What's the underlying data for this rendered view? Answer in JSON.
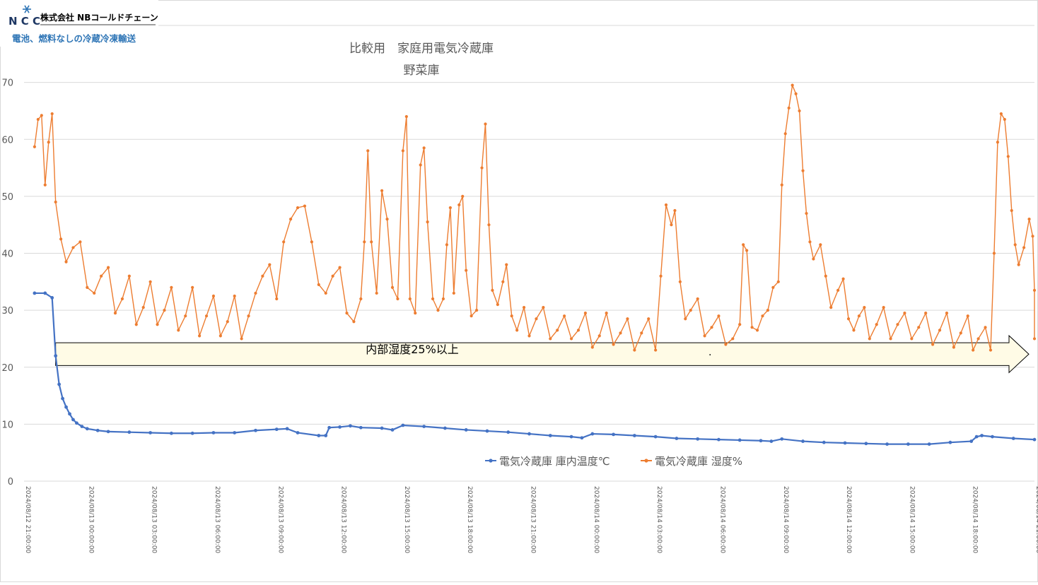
{
  "logo": {
    "brand_mark": "N C C",
    "company": "株式会社 NBコールドチェーン",
    "tagline": "電池、燃料なしの冷蔵冷凍輸送",
    "accent": "#2e75b6"
  },
  "annotation": {
    "arrow_label": "内部湿度25%以上",
    "stray_mark": ".",
    "fill": "#fffbe6",
    "stroke": "#000000"
  },
  "chart_data": {
    "type": "line",
    "title": "比較用　家庭用電気冷蔵庫",
    "subtitle": "野菜庫",
    "xlabel": "",
    "ylabel": "",
    "ylim": [
      0,
      80
    ],
    "yticks": [
      0,
      10,
      20,
      30,
      40,
      50,
      60,
      70,
      80
    ],
    "xlim": [
      "2024/08/12 21:00:00",
      "2024/08/14 21:00:00"
    ],
    "xticks": [
      "2024/08/12 21:00:00",
      "2024/08/13 00:00:00",
      "2024/08/13 03:00:00",
      "2024/08/13 06:00:00",
      "2024/08/13 09:00:00",
      "2024/08/13 12:00:00",
      "2024/08/13 15:00:00",
      "2024/08/13 18:00:00",
      "2024/08/13 21:00:00",
      "2024/08/14 00:00:00",
      "2024/08/14 03:00:00",
      "2024/08/14 06:00:00",
      "2024/08/14 09:00:00",
      "2024/08/14 12:00:00",
      "2024/08/14 15:00:00",
      "2024/08/14 18:00:00",
      "2024/08/14 21:00:00"
    ],
    "grid": "horizontal",
    "legend": "bottom-right",
    "series": [
      {
        "name": "電気冷蔵庫 庫内温度℃",
        "color": "#4472c4",
        "points": [
          [
            "2024/08/12 21:30",
            33.0
          ],
          [
            "2024/08/12 22:00",
            33.0
          ],
          [
            "2024/08/12 22:20",
            32.2
          ],
          [
            "2024/08/12 22:30",
            22.0
          ],
          [
            "2024/08/12 22:40",
            17.0
          ],
          [
            "2024/08/12 22:50",
            14.5
          ],
          [
            "2024/08/12 23:00",
            13.0
          ],
          [
            "2024/08/12 23:10",
            11.8
          ],
          [
            "2024/08/12 23:20",
            10.8
          ],
          [
            "2024/08/12 23:30",
            10.2
          ],
          [
            "2024/08/12 23:45",
            9.6
          ],
          [
            "2024/08/13 00:00",
            9.2
          ],
          [
            "2024/08/13 00:30",
            8.9
          ],
          [
            "2024/08/13 01:00",
            8.7
          ],
          [
            "2024/08/13 02:00",
            8.6
          ],
          [
            "2024/08/13 03:00",
            8.5
          ],
          [
            "2024/08/13 04:00",
            8.4
          ],
          [
            "2024/08/13 05:00",
            8.4
          ],
          [
            "2024/08/13 06:00",
            8.5
          ],
          [
            "2024/08/13 07:00",
            8.5
          ],
          [
            "2024/08/13 08:00",
            8.9
          ],
          [
            "2024/08/13 09:00",
            9.1
          ],
          [
            "2024/08/13 09:30",
            9.2
          ],
          [
            "2024/08/13 10:00",
            8.5
          ],
          [
            "2024/08/13 11:00",
            8.0
          ],
          [
            "2024/08/13 11:20",
            8.0
          ],
          [
            "2024/08/13 11:30",
            9.4
          ],
          [
            "2024/08/13 12:00",
            9.5
          ],
          [
            "2024/08/13 12:30",
            9.7
          ],
          [
            "2024/08/13 13:00",
            9.4
          ],
          [
            "2024/08/13 14:00",
            9.3
          ],
          [
            "2024/08/13 14:30",
            9.0
          ],
          [
            "2024/08/13 15:00",
            9.8
          ],
          [
            "2024/08/13 16:00",
            9.6
          ],
          [
            "2024/08/13 17:00",
            9.3
          ],
          [
            "2024/08/13 18:00",
            9.0
          ],
          [
            "2024/08/13 19:00",
            8.8
          ],
          [
            "2024/08/13 20:00",
            8.6
          ],
          [
            "2024/08/13 21:00",
            8.3
          ],
          [
            "2024/08/13 22:00",
            8.0
          ],
          [
            "2024/08/13 23:00",
            7.8
          ],
          [
            "2024/08/13 23:30",
            7.6
          ],
          [
            "2024/08/14 00:00",
            8.3
          ],
          [
            "2024/08/14 01:00",
            8.2
          ],
          [
            "2024/08/14 02:00",
            8.0
          ],
          [
            "2024/08/14 03:00",
            7.8
          ],
          [
            "2024/08/14 04:00",
            7.5
          ],
          [
            "2024/08/14 05:00",
            7.4
          ],
          [
            "2024/08/14 06:00",
            7.3
          ],
          [
            "2024/08/14 07:00",
            7.2
          ],
          [
            "2024/08/14 08:00",
            7.1
          ],
          [
            "2024/08/14 08:30",
            7.0
          ],
          [
            "2024/08/14 09:00",
            7.4
          ],
          [
            "2024/08/14 10:00",
            7.0
          ],
          [
            "2024/08/14 11:00",
            6.8
          ],
          [
            "2024/08/14 12:00",
            6.7
          ],
          [
            "2024/08/14 13:00",
            6.6
          ],
          [
            "2024/08/14 14:00",
            6.5
          ],
          [
            "2024/08/14 15:00",
            6.5
          ],
          [
            "2024/08/14 16:00",
            6.5
          ],
          [
            "2024/08/14 17:00",
            6.8
          ],
          [
            "2024/08/14 18:00",
            7.0
          ],
          [
            "2024/08/14 18:15",
            7.8
          ],
          [
            "2024/08/14 18:30",
            8.0
          ],
          [
            "2024/08/14 19:00",
            7.8
          ],
          [
            "2024/08/14 20:00",
            7.5
          ],
          [
            "2024/08/14 21:00",
            7.3
          ]
        ]
      },
      {
        "name": "電気冷蔵庫 湿度%",
        "color": "#ed7d31",
        "points": [
          [
            "2024/08/12 21:30",
            58.7
          ],
          [
            "2024/08/12 21:40",
            63.5
          ],
          [
            "2024/08/12 21:50",
            64.2
          ],
          [
            "2024/08/12 22:00",
            52.0
          ],
          [
            "2024/08/12 22:10",
            59.5
          ],
          [
            "2024/08/12 22:20",
            64.5
          ],
          [
            "2024/08/12 22:30",
            49.0
          ],
          [
            "2024/08/12 22:45",
            42.5
          ],
          [
            "2024/08/12 23:00",
            38.5
          ],
          [
            "2024/08/12 23:20",
            41.0
          ],
          [
            "2024/08/12 23:40",
            42.0
          ],
          [
            "2024/08/13 00:00",
            34.0
          ],
          [
            "2024/08/13 00:20",
            33.0
          ],
          [
            "2024/08/13 00:40",
            36.0
          ],
          [
            "2024/08/13 01:00",
            37.5
          ],
          [
            "2024/08/13 01:20",
            29.5
          ],
          [
            "2024/08/13 01:40",
            32.0
          ],
          [
            "2024/08/13 02:00",
            36.0
          ],
          [
            "2024/08/13 02:20",
            27.5
          ],
          [
            "2024/08/13 02:40",
            30.5
          ],
          [
            "2024/08/13 03:00",
            35.0
          ],
          [
            "2024/08/13 03:20",
            27.5
          ],
          [
            "2024/08/13 03:40",
            30.0
          ],
          [
            "2024/08/13 04:00",
            34.0
          ],
          [
            "2024/08/13 04:20",
            26.5
          ],
          [
            "2024/08/13 04:40",
            29.0
          ],
          [
            "2024/08/13 05:00",
            34.0
          ],
          [
            "2024/08/13 05:20",
            25.5
          ],
          [
            "2024/08/13 05:40",
            29.0
          ],
          [
            "2024/08/13 06:00",
            32.5
          ],
          [
            "2024/08/13 06:20",
            25.5
          ],
          [
            "2024/08/13 06:40",
            28.0
          ],
          [
            "2024/08/13 07:00",
            32.5
          ],
          [
            "2024/08/13 07:20",
            25.0
          ],
          [
            "2024/08/13 07:40",
            29.0
          ],
          [
            "2024/08/13 08:00",
            33.0
          ],
          [
            "2024/08/13 08:20",
            36.0
          ],
          [
            "2024/08/13 08:40",
            38.0
          ],
          [
            "2024/08/13 09:00",
            32.0
          ],
          [
            "2024/08/13 09:20",
            42.0
          ],
          [
            "2024/08/13 09:40",
            46.0
          ],
          [
            "2024/08/13 10:00",
            48.0
          ],
          [
            "2024/08/13 10:20",
            48.3
          ],
          [
            "2024/08/13 10:40",
            42.0
          ],
          [
            "2024/08/13 11:00",
            34.5
          ],
          [
            "2024/08/13 11:20",
            33.0
          ],
          [
            "2024/08/13 11:40",
            36.0
          ],
          [
            "2024/08/13 12:00",
            37.5
          ],
          [
            "2024/08/13 12:20",
            29.5
          ],
          [
            "2024/08/13 12:40",
            28.0
          ],
          [
            "2024/08/13 13:00",
            32.0
          ],
          [
            "2024/08/13 13:10",
            42.0
          ],
          [
            "2024/08/13 13:20",
            58.0
          ],
          [
            "2024/08/13 13:30",
            42.0
          ],
          [
            "2024/08/13 13:45",
            33.0
          ],
          [
            "2024/08/13 14:00",
            51.0
          ],
          [
            "2024/08/13 14:15",
            46.0
          ],
          [
            "2024/08/13 14:30",
            34.0
          ],
          [
            "2024/08/13 14:45",
            32.0
          ],
          [
            "2024/08/13 15:00",
            58.0
          ],
          [
            "2024/08/13 15:10",
            64.0
          ],
          [
            "2024/08/13 15:20",
            32.0
          ],
          [
            "2024/08/13 15:35",
            29.5
          ],
          [
            "2024/08/13 15:50",
            55.5
          ],
          [
            "2024/08/13 16:00",
            58.5
          ],
          [
            "2024/08/13 16:10",
            45.5
          ],
          [
            "2024/08/13 16:25",
            32.0
          ],
          [
            "2024/08/13 16:40",
            30.0
          ],
          [
            "2024/08/13 16:55",
            32.0
          ],
          [
            "2024/08/13 17:05",
            41.5
          ],
          [
            "2024/08/13 17:15",
            48.0
          ],
          [
            "2024/08/13 17:25",
            33.0
          ],
          [
            "2024/08/13 17:40",
            48.5
          ],
          [
            "2024/08/13 17:50",
            50.0
          ],
          [
            "2024/08/13 18:00",
            37.0
          ],
          [
            "2024/08/13 18:15",
            29.0
          ],
          [
            "2024/08/13 18:30",
            30.0
          ],
          [
            "2024/08/13 18:45",
            55.0
          ],
          [
            "2024/08/13 18:55",
            62.7
          ],
          [
            "2024/08/13 19:05",
            45.0
          ],
          [
            "2024/08/13 19:15",
            33.5
          ],
          [
            "2024/08/13 19:30",
            31.0
          ],
          [
            "2024/08/13 19:45",
            35.0
          ],
          [
            "2024/08/13 19:55",
            38.0
          ],
          [
            "2024/08/13 20:10",
            29.0
          ],
          [
            "2024/08/13 20:25",
            26.5
          ],
          [
            "2024/08/13 20:45",
            30.5
          ],
          [
            "2024/08/13 21:00",
            25.5
          ],
          [
            "2024/08/13 21:20",
            28.5
          ],
          [
            "2024/08/13 21:40",
            30.5
          ],
          [
            "2024/08/13 22:00",
            25.0
          ],
          [
            "2024/08/13 22:20",
            26.5
          ],
          [
            "2024/08/13 22:40",
            29.0
          ],
          [
            "2024/08/13 23:00",
            25.0
          ],
          [
            "2024/08/13 23:20",
            26.5
          ],
          [
            "2024/08/13 23:40",
            29.5
          ],
          [
            "2024/08/14 00:00",
            23.5
          ],
          [
            "2024/08/14 00:20",
            25.5
          ],
          [
            "2024/08/14 00:40",
            29.5
          ],
          [
            "2024/08/14 01:00",
            24.0
          ],
          [
            "2024/08/14 01:20",
            26.0
          ],
          [
            "2024/08/14 01:40",
            28.5
          ],
          [
            "2024/08/14 02:00",
            23.0
          ],
          [
            "2024/08/14 02:20",
            26.0
          ],
          [
            "2024/08/14 02:40",
            28.5
          ],
          [
            "2024/08/14 03:00",
            23.0
          ],
          [
            "2024/08/14 03:15",
            36.0
          ],
          [
            "2024/08/14 03:30",
            48.5
          ],
          [
            "2024/08/14 03:45",
            45.0
          ],
          [
            "2024/08/14 03:55",
            47.5
          ],
          [
            "2024/08/14 04:10",
            35.0
          ],
          [
            "2024/08/14 04:25",
            28.5
          ],
          [
            "2024/08/14 04:40",
            30.0
          ],
          [
            "2024/08/14 05:00",
            32.0
          ],
          [
            "2024/08/14 05:20",
            25.5
          ],
          [
            "2024/08/14 05:40",
            27.0
          ],
          [
            "2024/08/14 06:00",
            29.0
          ],
          [
            "2024/08/14 06:20",
            24.0
          ],
          [
            "2024/08/14 06:40",
            25.0
          ],
          [
            "2024/08/14 07:00",
            27.5
          ],
          [
            "2024/08/14 07:10",
            41.5
          ],
          [
            "2024/08/14 07:20",
            40.5
          ],
          [
            "2024/08/14 07:35",
            27.0
          ],
          [
            "2024/08/14 07:50",
            26.5
          ],
          [
            "2024/08/14 08:05",
            29.0
          ],
          [
            "2024/08/14 08:20",
            30.0
          ],
          [
            "2024/08/14 08:35",
            34.0
          ],
          [
            "2024/08/14 08:50",
            35.0
          ],
          [
            "2024/08/14 09:00",
            52.0
          ],
          [
            "2024/08/14 09:10",
            61.0
          ],
          [
            "2024/08/14 09:20",
            65.5
          ],
          [
            "2024/08/14 09:30",
            69.5
          ],
          [
            "2024/08/14 09:40",
            68.0
          ],
          [
            "2024/08/14 09:50",
            65.0
          ],
          [
            "2024/08/14 10:00",
            54.5
          ],
          [
            "2024/08/14 10:10",
            47.0
          ],
          [
            "2024/08/14 10:20",
            42.0
          ],
          [
            "2024/08/14 10:30",
            39.0
          ],
          [
            "2024/08/14 10:50",
            41.5
          ],
          [
            "2024/08/14 11:05",
            36.0
          ],
          [
            "2024/08/14 11:20",
            30.5
          ],
          [
            "2024/08/14 11:40",
            33.5
          ],
          [
            "2024/08/14 11:55",
            35.5
          ],
          [
            "2024/08/14 12:10",
            28.5
          ],
          [
            "2024/08/14 12:25",
            26.5
          ],
          [
            "2024/08/14 12:40",
            29.0
          ],
          [
            "2024/08/14 12:55",
            30.5
          ],
          [
            "2024/08/14 13:10",
            25.0
          ],
          [
            "2024/08/14 13:30",
            27.5
          ],
          [
            "2024/08/14 13:50",
            30.5
          ],
          [
            "2024/08/14 14:10",
            25.0
          ],
          [
            "2024/08/14 14:30",
            27.5
          ],
          [
            "2024/08/14 14:50",
            29.5
          ],
          [
            "2024/08/14 15:10",
            25.0
          ],
          [
            "2024/08/14 15:30",
            27.0
          ],
          [
            "2024/08/14 15:50",
            29.5
          ],
          [
            "2024/08/14 16:10",
            24.0
          ],
          [
            "2024/08/14 16:30",
            26.5
          ],
          [
            "2024/08/14 16:50",
            29.5
          ],
          [
            "2024/08/14 17:10",
            23.5
          ],
          [
            "2024/08/14 17:30",
            26.0
          ],
          [
            "2024/08/14 17:50",
            29.0
          ],
          [
            "2024/08/14 18:05",
            23.0
          ],
          [
            "2024/08/14 18:20",
            25.0
          ],
          [
            "2024/08/14 18:40",
            27.0
          ],
          [
            "2024/08/14 18:55",
            23.0
          ],
          [
            "2024/08/14 19:05",
            40.0
          ],
          [
            "2024/08/14 19:15",
            59.5
          ],
          [
            "2024/08/14 19:25",
            64.5
          ],
          [
            "2024/08/14 19:35",
            63.5
          ],
          [
            "2024/08/14 19:45",
            57.0
          ],
          [
            "2024/08/14 19:55",
            47.5
          ],
          [
            "2024/08/14 20:05",
            41.5
          ],
          [
            "2024/08/14 20:15",
            38.0
          ],
          [
            "2024/08/14 20:30",
            41.0
          ],
          [
            "2024/08/14 20:45",
            46.0
          ],
          [
            "2024/08/14 20:55",
            43.0
          ],
          [
            "2024/08/14 21:00",
            33.5
          ],
          [
            "2024/08/14 21:00",
            25.0
          ]
        ]
      }
    ]
  }
}
